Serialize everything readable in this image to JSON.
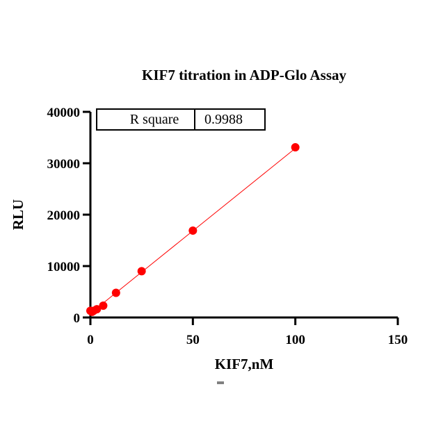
{
  "chart_data": {
    "type": "scatter",
    "title": "KIF7 titration in ADP-Glo Assay",
    "xlabel": "KIF7,nM",
    "ylabel": "RLU",
    "xlim": [
      0,
      150
    ],
    "ylim": [
      0,
      40000
    ],
    "x_ticks": [
      0,
      50,
      100,
      150
    ],
    "y_ticks": [
      0,
      10000,
      20000,
      30000,
      40000
    ],
    "grid": false,
    "series": [
      {
        "points": [
          {
            "x": 0,
            "y": 1300
          },
          {
            "x": 0.78,
            "y": 1100
          },
          {
            "x": 1.56,
            "y": 1300
          },
          {
            "x": 3.13,
            "y": 1600
          },
          {
            "x": 6.25,
            "y": 2300
          },
          {
            "x": 12.5,
            "y": 4800
          },
          {
            "x": 25,
            "y": 9000
          },
          {
            "x": 50,
            "y": 16900
          },
          {
            "x": 100,
            "y": 33100
          }
        ],
        "color": "#ff0000"
      }
    ],
    "fit_line": {
      "type": "linear",
      "from": {
        "x": 0,
        "y": 800
      },
      "to": {
        "x": 100,
        "y": 32900
      },
      "color": "#ff0000"
    },
    "stats_table": {
      "label": "R square",
      "value": "0.9988"
    }
  }
}
